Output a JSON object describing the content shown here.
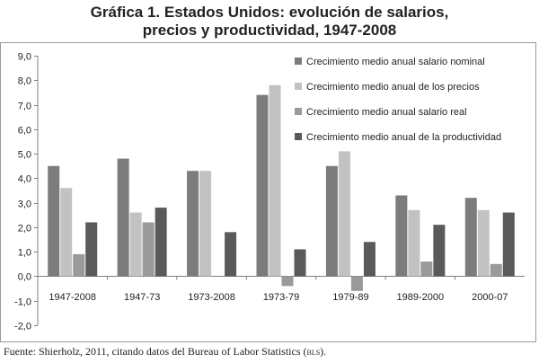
{
  "chart_data": {
    "type": "bar",
    "title": [
      "Gráfica 1. Estados Unidos: evolución de salarios,",
      "precios y productividad, 1947-2008"
    ],
    "categories": [
      "1947-2008",
      "1947-73",
      "1973-2008",
      "1973-79",
      "1979-89",
      "1989-2000",
      "2000-07"
    ],
    "series": [
      {
        "name": "Crecimiento medio anual salario nominal",
        "color": "#7c7c7c",
        "values": [
          4.5,
          4.8,
          4.3,
          7.4,
          4.5,
          3.3,
          3.2
        ]
      },
      {
        "name": "Crecimiento medio anual de los precios",
        "color": "#c2c2c2",
        "values": [
          3.6,
          2.6,
          4.3,
          7.8,
          5.1,
          2.7,
          2.7
        ]
      },
      {
        "name": "Crecimiento medio anual salario real",
        "color": "#9a9a9a",
        "values": [
          0.9,
          2.2,
          0.0,
          -0.4,
          -0.6,
          0.6,
          0.5
        ]
      },
      {
        "name": "Crecimiento medio anual de la productividad",
        "color": "#5a5a5a",
        "values": [
          2.2,
          2.8,
          1.8,
          1.1,
          1.4,
          2.1,
          2.6
        ]
      }
    ],
    "ylim": [
      -2.0,
      9.0
    ],
    "yticks": [
      "-2,0",
      "-1,0",
      "0,0",
      "1,0",
      "2,0",
      "3,0",
      "4,0",
      "5,0",
      "6,0",
      "7,0",
      "8,0",
      "9,0"
    ],
    "xlabel": "",
    "ylabel": "",
    "grid": false,
    "legend_placement": "top-right"
  },
  "source": {
    "text": "Fuente: Shierholz, 2011, citando datos del Bureau of Labor Statistics (",
    "abbr": "bls",
    "end": ")."
  }
}
